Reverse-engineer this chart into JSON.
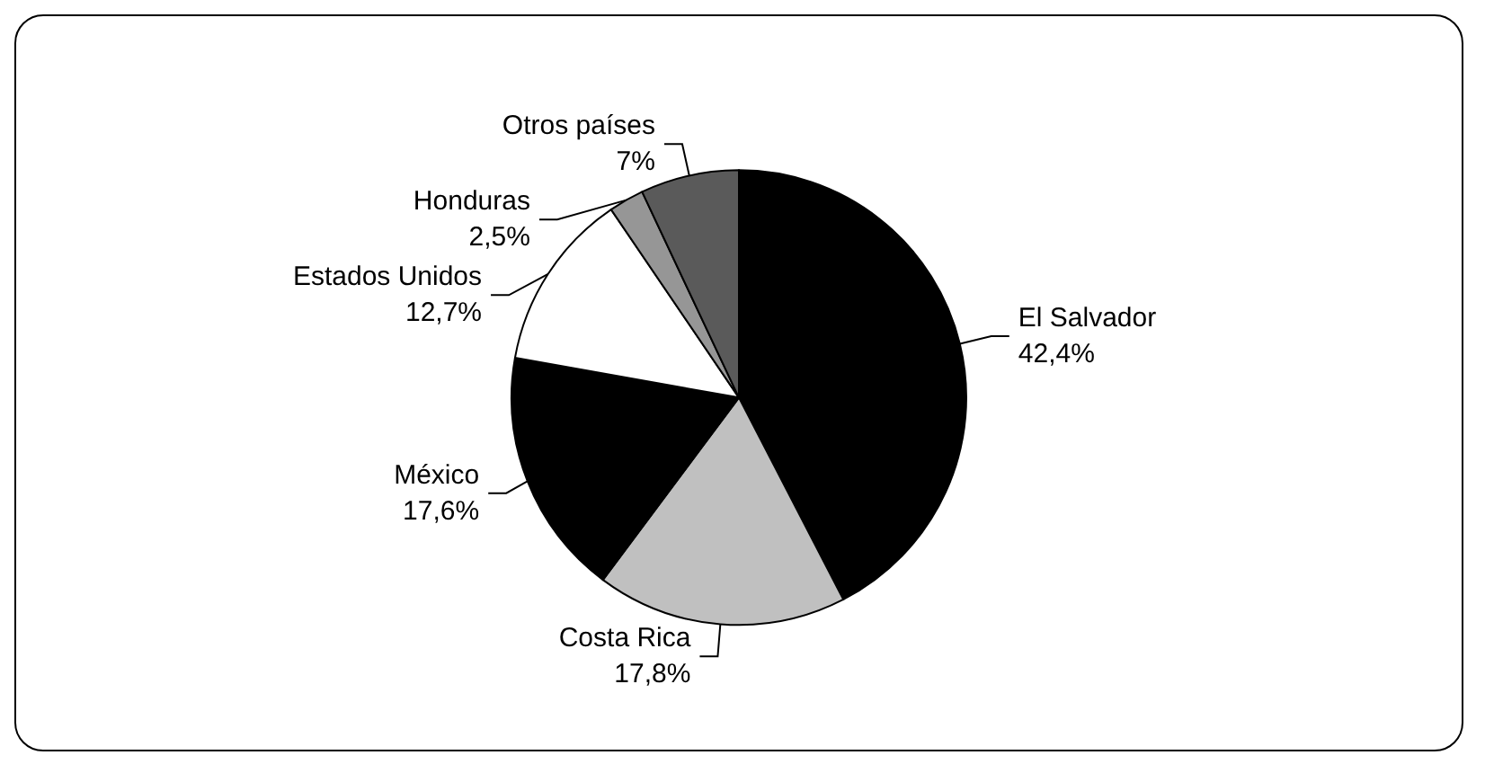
{
  "chart_data": {
    "type": "pie",
    "categories": [
      "El Salvador",
      "Costa Rica",
      "México",
      "Estados Unidos",
      "Honduras",
      "Otros países"
    ],
    "values": [
      42.4,
      17.8,
      17.6,
      12.7,
      2.5,
      7
    ],
    "value_labels": [
      "42,4%",
      "17,8%",
      "17,6%",
      "12,7%",
      "2,5%",
      "7%"
    ],
    "colors": [
      "#000000",
      "#c0c0c0",
      "#000000",
      "#ffffff",
      "#969696",
      "#5a5a5a"
    ],
    "legend": false
  }
}
